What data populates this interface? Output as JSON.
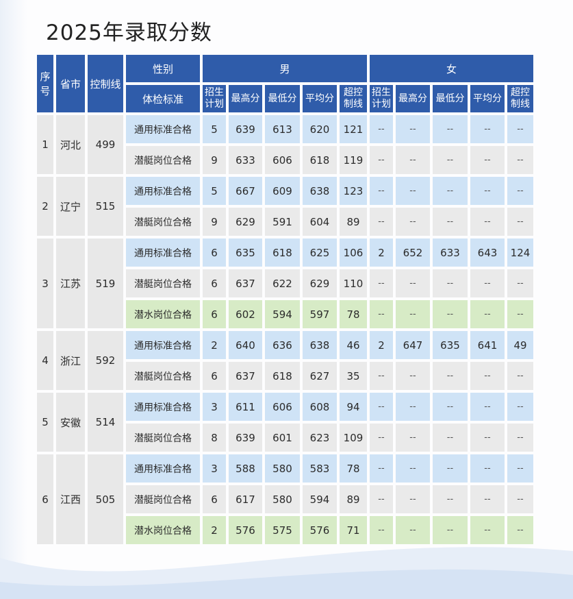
{
  "title": "2025年录取分数",
  "header": {
    "seq_line1": "序",
    "seq_line2": "号",
    "province": "省市",
    "control_line": "控制线",
    "gender": "性别",
    "physical_standard": "体检标准",
    "male": "男",
    "female": "女",
    "cols": {
      "plan_line1": "招生",
      "plan_line2": "计划",
      "max": "最高分",
      "min": "最低分",
      "avg": "平均分",
      "over_line1": "超控",
      "over_line2": "制线"
    }
  },
  "groups": [
    {
      "seq": "1",
      "province": "河北",
      "control": "499",
      "rows": [
        {
          "std": "通用标准合格",
          "color": "blue",
          "male": [
            "5",
            "639",
            "613",
            "620",
            "121"
          ],
          "female": [
            "--",
            "--",
            "--",
            "--",
            "--"
          ]
        },
        {
          "std": "潜艇岗位合格",
          "color": "gray",
          "male": [
            "9",
            "633",
            "606",
            "618",
            "119"
          ],
          "female": [
            "--",
            "--",
            "--",
            "--",
            "--"
          ]
        }
      ]
    },
    {
      "seq": "2",
      "province": "辽宁",
      "control": "515",
      "rows": [
        {
          "std": "通用标准合格",
          "color": "blue",
          "male": [
            "5",
            "667",
            "609",
            "638",
            "123"
          ],
          "female": [
            "--",
            "--",
            "--",
            "--",
            "--"
          ]
        },
        {
          "std": "潜艇岗位合格",
          "color": "gray",
          "male": [
            "9",
            "629",
            "591",
            "604",
            "89"
          ],
          "female": [
            "--",
            "--",
            "--",
            "--",
            "--"
          ]
        }
      ]
    },
    {
      "seq": "3",
      "province": "江苏",
      "control": "519",
      "rows": [
        {
          "std": "通用标准合格",
          "color": "blue",
          "male": [
            "6",
            "635",
            "618",
            "625",
            "106"
          ],
          "female": [
            "2",
            "652",
            "633",
            "643",
            "124"
          ]
        },
        {
          "std": "潜艇岗位合格",
          "color": "gray",
          "male": [
            "6",
            "637",
            "622",
            "629",
            "110"
          ],
          "female": [
            "--",
            "--",
            "--",
            "--",
            "--"
          ]
        },
        {
          "std": "潜水岗位合格",
          "color": "green",
          "male": [
            "6",
            "602",
            "594",
            "597",
            "78"
          ],
          "female": [
            "--",
            "--",
            "--",
            "--",
            "--"
          ]
        }
      ]
    },
    {
      "seq": "4",
      "province": "浙江",
      "control": "592",
      "rows": [
        {
          "std": "通用标准合格",
          "color": "blue",
          "male": [
            "2",
            "640",
            "636",
            "638",
            "46"
          ],
          "female": [
            "2",
            "647",
            "635",
            "641",
            "49"
          ]
        },
        {
          "std": "潜艇岗位合格",
          "color": "gray",
          "male": [
            "6",
            "637",
            "618",
            "627",
            "35"
          ],
          "female": [
            "--",
            "--",
            "--",
            "--",
            "--"
          ]
        }
      ]
    },
    {
      "seq": "5",
      "province": "安徽",
      "control": "514",
      "rows": [
        {
          "std": "通用标准合格",
          "color": "blue",
          "male": [
            "3",
            "611",
            "606",
            "608",
            "94"
          ],
          "female": [
            "--",
            "--",
            "--",
            "--",
            "--"
          ]
        },
        {
          "std": "潜艇岗位合格",
          "color": "gray",
          "male": [
            "8",
            "639",
            "601",
            "623",
            "109"
          ],
          "female": [
            "--",
            "--",
            "--",
            "--",
            "--"
          ]
        }
      ]
    },
    {
      "seq": "6",
      "province": "江西",
      "control": "505",
      "rows": [
        {
          "std": "通用标准合格",
          "color": "blue",
          "male": [
            "3",
            "588",
            "580",
            "583",
            "78"
          ],
          "female": [
            "--",
            "--",
            "--",
            "--",
            "--"
          ]
        },
        {
          "std": "潜艇岗位合格",
          "color": "gray",
          "male": [
            "6",
            "617",
            "580",
            "594",
            "89"
          ],
          "female": [
            "--",
            "--",
            "--",
            "--",
            "--"
          ]
        },
        {
          "std": "潜水岗位合格",
          "color": "green",
          "male": [
            "2",
            "576",
            "575",
            "576",
            "71"
          ],
          "female": [
            "--",
            "--",
            "--",
            "--",
            "--"
          ]
        }
      ]
    }
  ]
}
